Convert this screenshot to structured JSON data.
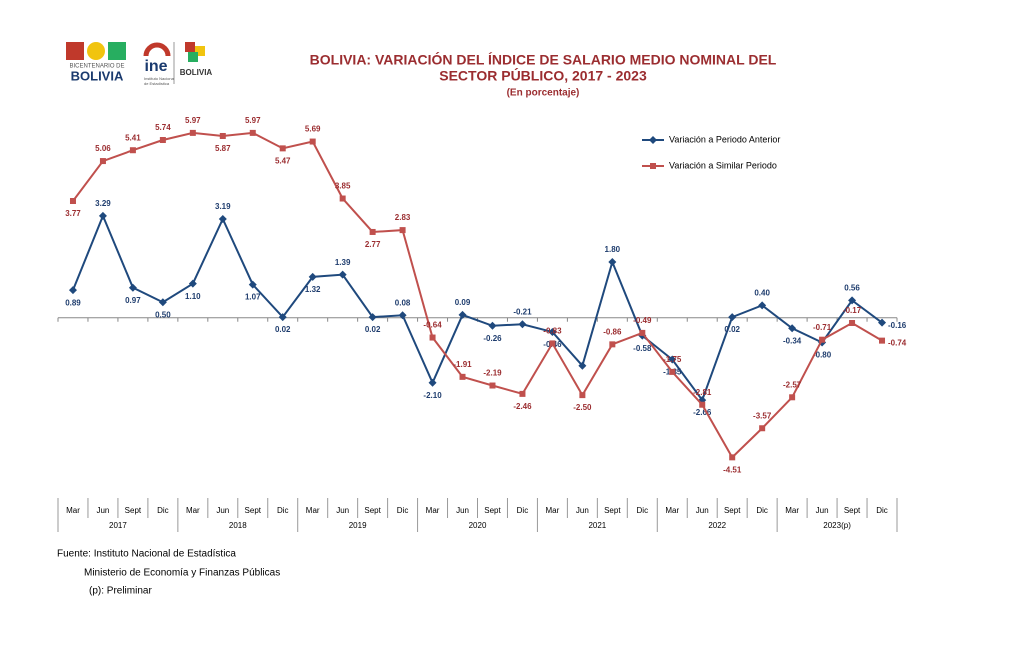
{
  "logos": {
    "bicentenario": [
      "BICENTENARIO DE",
      "BOLIVIA"
    ],
    "ine": [
      "ine",
      "Instituto Nacional",
      "de Estadística"
    ],
    "estado": "BOLIVIA"
  },
  "chart_data": {
    "type": "line",
    "title": "BOLIVIA: VARIACIÓN DEL ÍNDICE DE SALARIO MEDIO NOMINAL DEL",
    "title_line2": "SECTOR PÚBLICO,  2017 - 2023",
    "subtitle": "(En porcentaje)",
    "categories": [
      "Mar",
      "Jun",
      "Sept",
      "Dic",
      "Mar",
      "Jun",
      "Sept",
      "Dic",
      "Mar",
      "Jun",
      "Sept",
      "Dic",
      "Mar",
      "Jun",
      "Sept",
      "Dic",
      "Mar",
      "Jun",
      "Sept",
      "Dic",
      "Mar",
      "Jun",
      "Sept",
      "Dic",
      "Mar",
      "Jun",
      "Sept",
      "Dic"
    ],
    "year_groups": [
      "2017",
      "2018",
      "2019",
      "2020",
      "2021",
      "2022",
      "2023(p)"
    ],
    "ylim": [
      -5.5,
      7
    ],
    "legend": "top-right",
    "series": [
      {
        "name": "Variación a Periodo Anterior",
        "color": "#1f497d",
        "marker": "diamond",
        "values": [
          0.89,
          3.29,
          0.97,
          0.5,
          1.1,
          3.19,
          1.07,
          0.02,
          1.32,
          1.39,
          0.02,
          0.08,
          -2.1,
          0.09,
          -0.26,
          -0.21,
          -0.46,
          -1.55,
          1.8,
          -0.58,
          -1.35,
          -2.66,
          0.02,
          0.4,
          -0.34,
          -0.8,
          0.56,
          -0.16
        ],
        "value_labels": [
          "0.89",
          "3.29",
          "0.97",
          "0.50",
          "1.10",
          "3.19",
          "1.07",
          "0.02",
          "1.32",
          "1.39",
          "0.02",
          "0.08",
          "-2.10",
          "0.09",
          "-0.26",
          "-0.21",
          "-0.46",
          null,
          "1.80",
          "-0.58",
          "-1.35",
          "-2.66",
          "0.02",
          "0.40",
          "-0.34",
          "-0.80",
          "0.56",
          "-0.16"
        ]
      },
      {
        "name": "Variación a Similar Periodo",
        "color": "#c0504d",
        "marker": "square",
        "values": [
          3.77,
          5.06,
          5.41,
          5.74,
          5.97,
          5.87,
          5.97,
          5.47,
          5.69,
          3.85,
          2.77,
          2.83,
          -0.64,
          -1.91,
          -2.19,
          -2.46,
          -0.83,
          -2.5,
          -0.86,
          -0.49,
          -1.75,
          -2.81,
          -4.51,
          -3.57,
          -2.57,
          -0.71,
          -0.17,
          -0.74
        ],
        "value_labels": [
          "3.77",
          "5.06",
          "5.41",
          "5.74",
          "5.97",
          "5.87",
          "5.97",
          "5.47",
          "5.69",
          "3.85",
          "2.77",
          "2.83",
          "-0.64",
          "-1.91",
          "-2.19",
          "-2.46",
          "-0.83",
          "-2.50",
          "-0.86",
          "-0.49",
          "-1.75",
          "-2.81",
          "-4.51",
          "-3.57",
          "-2.57",
          "-0.71",
          "-0.17",
          "-0.74"
        ]
      }
    ]
  },
  "source": [
    "Fuente: Instituto Nacional de Estadística",
    "Ministerio de Economía y Finanzas Públicas",
    "(p): Preliminar"
  ]
}
